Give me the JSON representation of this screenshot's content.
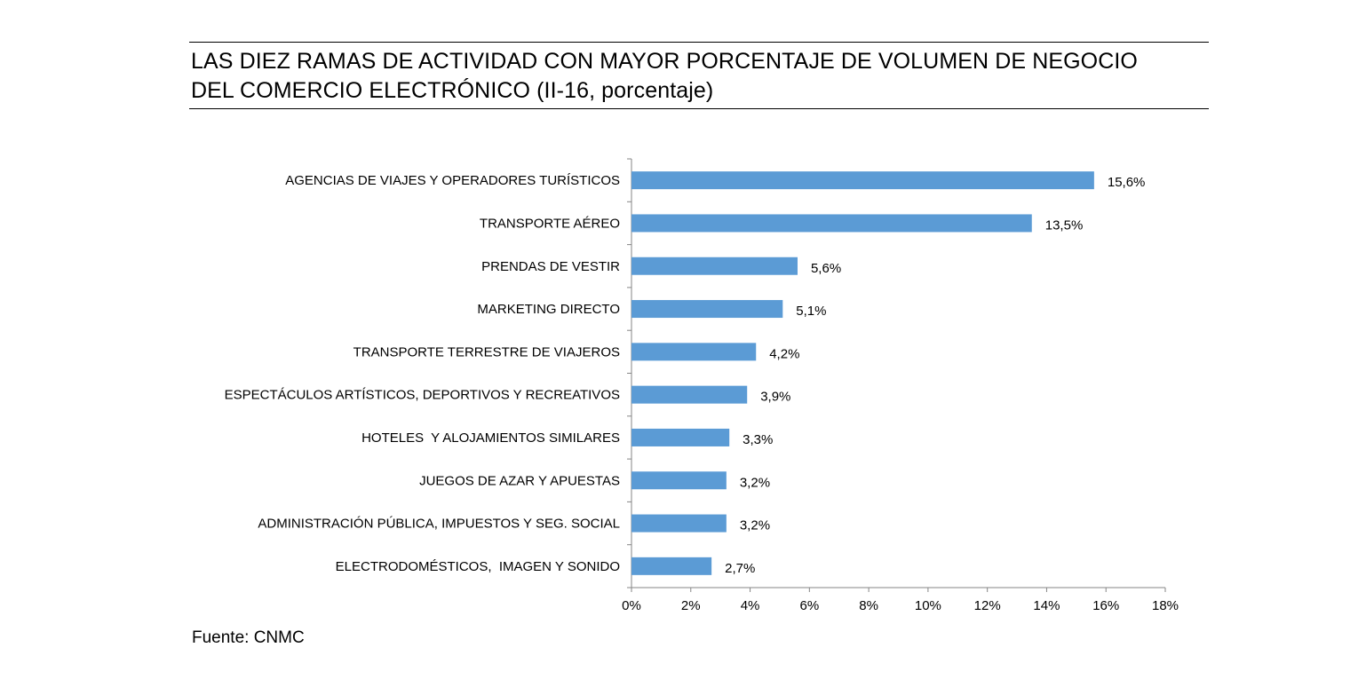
{
  "header": {
    "title_line1": "LAS DIEZ RAMAS DE ACTIVIDAD CON MAYOR PORCENTAJE DE VOLUMEN DE NEGOCIO",
    "title_line2": "DEL COMERCIO ELECTRÓNICO (II-16, porcentaje)"
  },
  "footer": {
    "source": "Fuente: CNMC"
  },
  "chart_data": {
    "type": "bar",
    "orientation": "horizontal",
    "title": "LAS DIEZ RAMAS DE ACTIVIDAD CON MAYOR PORCENTAJE DE VOLUMEN DE NEGOCIO DEL COMERCIO ELECTRÓNICO (II-16, porcentaje)",
    "xlabel": "",
    "ylabel": "",
    "categories": [
      "AGENCIAS DE VIAJES Y OPERADORES TURÍSTICOS",
      "TRANSPORTE AÉREO",
      "PRENDAS DE VESTIR",
      "MARKETING DIRECTO",
      "TRANSPORTE TERRESTRE DE VIAJEROS",
      "ESPECTÁCULOS ARTÍSTICOS, DEPORTIVOS Y RECREATIVOS",
      "HOTELES  Y ALOJAMIENTOS SIMILARES",
      "JUEGOS DE AZAR Y APUESTAS",
      "ADMINISTRACIÓN PÚBLICA, IMPUESTOS Y SEG. SOCIAL",
      "ELECTRODOMÉSTICOS,  IMAGEN Y SONIDO"
    ],
    "values": [
      15.6,
      13.5,
      5.6,
      5.1,
      4.2,
      3.9,
      3.3,
      3.2,
      3.2,
      2.7
    ],
    "data_labels": [
      "15,6%",
      "13,5%",
      "5,6%",
      "5,1%",
      "4,2%",
      "3,9%",
      "3,3%",
      "3,2%",
      "3,2%",
      "2,7%"
    ],
    "xlim": [
      0,
      18
    ],
    "x_ticks": [
      0,
      2,
      4,
      6,
      8,
      10,
      12,
      14,
      16,
      18
    ],
    "x_tick_labels": [
      "0%",
      "2%",
      "4%",
      "6%",
      "8%",
      "10%",
      "12%",
      "14%",
      "16%",
      "18%"
    ],
    "grid": false,
    "legend": "none",
    "bar_color": "#5b9bd5",
    "axis_color": "#868686"
  }
}
